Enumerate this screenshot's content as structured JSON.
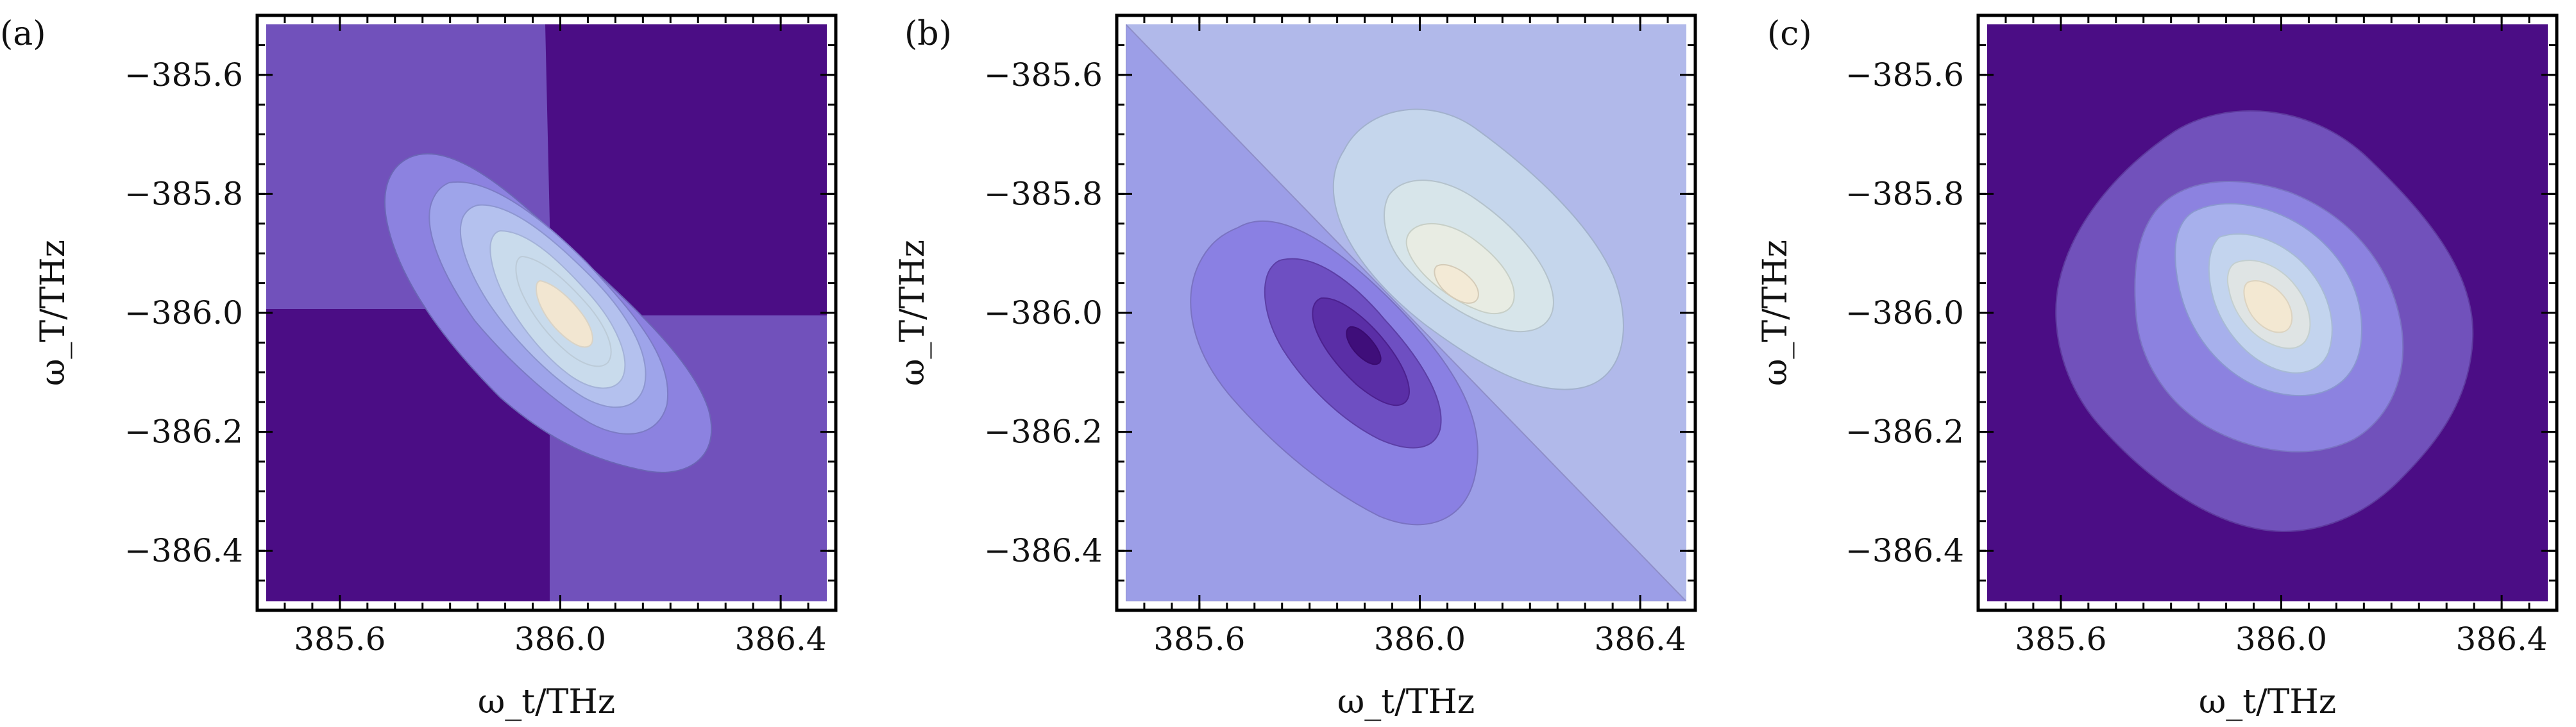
{
  "chart_data": [
    {
      "type": "contour",
      "panel_label": "(a)",
      "xlabel": "ω_t/THz",
      "ylabel": "ω_T/THz",
      "xlim": [
        385.45,
        386.5
      ],
      "ylim": [
        -386.5,
        -385.5
      ],
      "xticks": [
        385.6,
        386.0,
        386.4
      ],
      "xtick_labels": [
        "385.6",
        "386.0",
        "386.4"
      ],
      "yticks": [
        -385.6,
        -385.8,
        -386.0,
        -386.2,
        -386.4
      ],
      "ytick_labels": [
        "−385.6",
        "−385.8",
        "−386.0",
        "−386.2",
        "−386.4"
      ],
      "colors": {
        "background_dark": "#4b0d85",
        "level_1": "#7151bb",
        "level_2": "#8c82e0",
        "level_3": "#9ea4ea",
        "level_4": "#b4c1ee",
        "level_5": "#c9dbec",
        "peak": "#f2e6d1"
      },
      "peak": {
        "x": 386.0,
        "y": -386.0
      },
      "orientation": "anti-diagonal",
      "dark_regions": [
        "top-right",
        "bottom-left"
      ]
    },
    {
      "type": "contour",
      "panel_label": "(b)",
      "xlabel": "ω_t/THz",
      "ylabel": "ω_T/THz",
      "xlim": [
        385.45,
        386.5
      ],
      "ylim": [
        -386.5,
        -385.5
      ],
      "xticks": [
        385.6,
        386.0,
        386.4
      ],
      "xtick_labels": [
        "385.6",
        "386.0",
        "386.4"
      ],
      "yticks": [
        -385.6,
        -385.8,
        -386.0,
        -386.2,
        -386.4
      ],
      "ytick_labels": [
        "−385.6",
        "−385.8",
        "−386.0",
        "−386.2",
        "−386.4"
      ],
      "colors": {
        "upper_background": "#b1b9ea",
        "lower_background": "#9c9ee7",
        "positive_lobe": [
          "#c5d6ec",
          "#d7e5ea",
          "#e8ece3",
          "#f3ead6"
        ],
        "negative_lobe": [
          "#8a80e3",
          "#6e4fc2",
          "#5a2ea6",
          "#3f0e7a"
        ]
      },
      "positive_peak": {
        "x": 386.05,
        "y": -385.95
      },
      "negative_peak": {
        "x": 385.95,
        "y": -386.05
      }
    },
    {
      "type": "contour",
      "panel_label": "(c)",
      "xlabel": "ω_t/THz",
      "ylabel": "ω_T/THz",
      "xlim": [
        385.45,
        386.5
      ],
      "ylim": [
        -386.5,
        -385.5
      ],
      "xticks": [
        385.6,
        386.0,
        386.4
      ],
      "xtick_labels": [
        "385.6",
        "386.0",
        "386.4"
      ],
      "yticks": [
        -385.6,
        -385.8,
        -386.0,
        -386.2,
        -386.4
      ],
      "ytick_labels": [
        "−385.6",
        "−385.8",
        "−386.0",
        "−386.2",
        "−386.4"
      ],
      "colors": {
        "background_dark": "#4b0d85",
        "level_1": "#7151bb",
        "level_2": "#8c82e0",
        "level_3": "#a7b0ec",
        "level_4": "#c3d4ee",
        "level_5": "#dfe4e4",
        "peak": "#f3e8d2"
      },
      "peak": {
        "x": 386.0,
        "y": -386.0
      },
      "orientation": "anti-diagonal"
    }
  ]
}
